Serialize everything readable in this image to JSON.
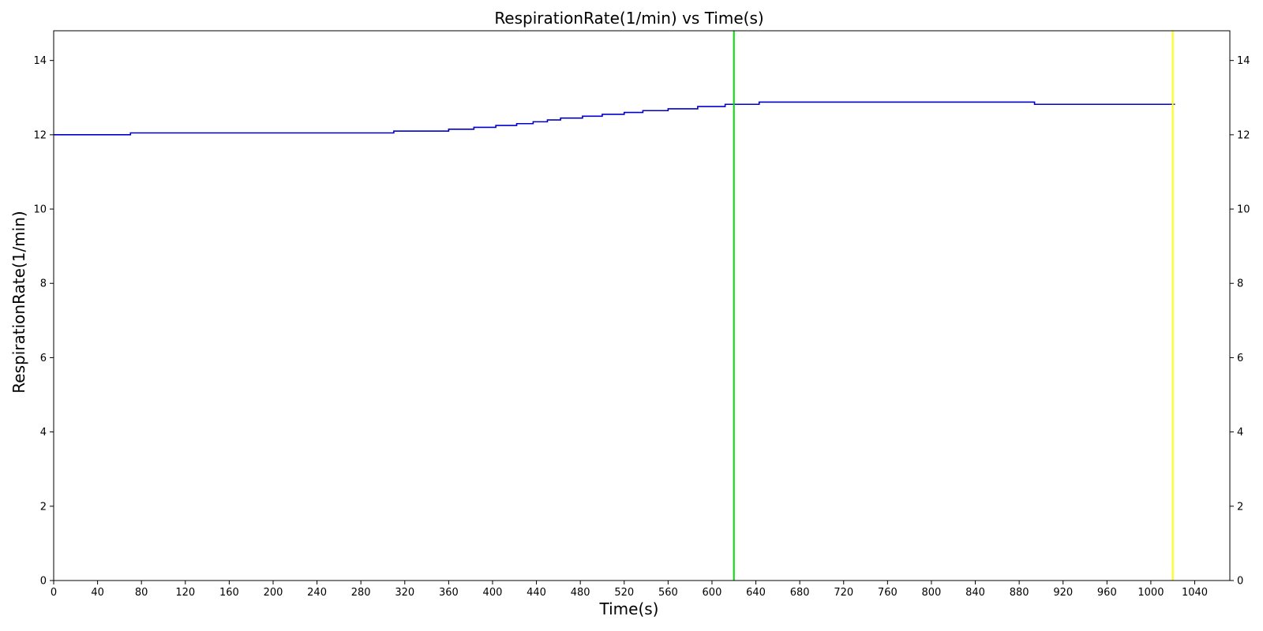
{
  "chart_data": {
    "type": "line",
    "title": "RespirationRate(1/min) vs Time(s)",
    "xlabel": "Time(s)",
    "ylabel": "RespirationRate(1/min)",
    "xlim": [
      0,
      1072
    ],
    "ylim": [
      0,
      14.8
    ],
    "x_ticks": [
      0,
      40,
      80,
      120,
      160,
      200,
      240,
      280,
      320,
      360,
      400,
      440,
      480,
      520,
      560,
      600,
      640,
      680,
      720,
      760,
      800,
      840,
      880,
      920,
      960,
      1000,
      1040
    ],
    "y_ticks": [
      0,
      2,
      4,
      6,
      8,
      10,
      12,
      14
    ],
    "right_axis_ticks": true,
    "grid": false,
    "legend": "none",
    "series": [
      {
        "color": "#0000cc",
        "step": true,
        "x": [
          0,
          70,
          310,
          360,
          383,
          403,
          422,
          437,
          450,
          462,
          482,
          500,
          520,
          537,
          560,
          587,
          612,
          643,
          894,
          1022
        ],
        "y": [
          12.0,
          12.05,
          12.1,
          12.15,
          12.2,
          12.25,
          12.3,
          12.35,
          12.4,
          12.45,
          12.5,
          12.55,
          12.6,
          12.65,
          12.7,
          12.76,
          12.82,
          12.88,
          12.82,
          12.82
        ]
      }
    ],
    "vertical_lines": [
      {
        "x": 620,
        "color": "#00dd00"
      },
      {
        "x": 1020,
        "color": "#ffff00"
      }
    ]
  }
}
